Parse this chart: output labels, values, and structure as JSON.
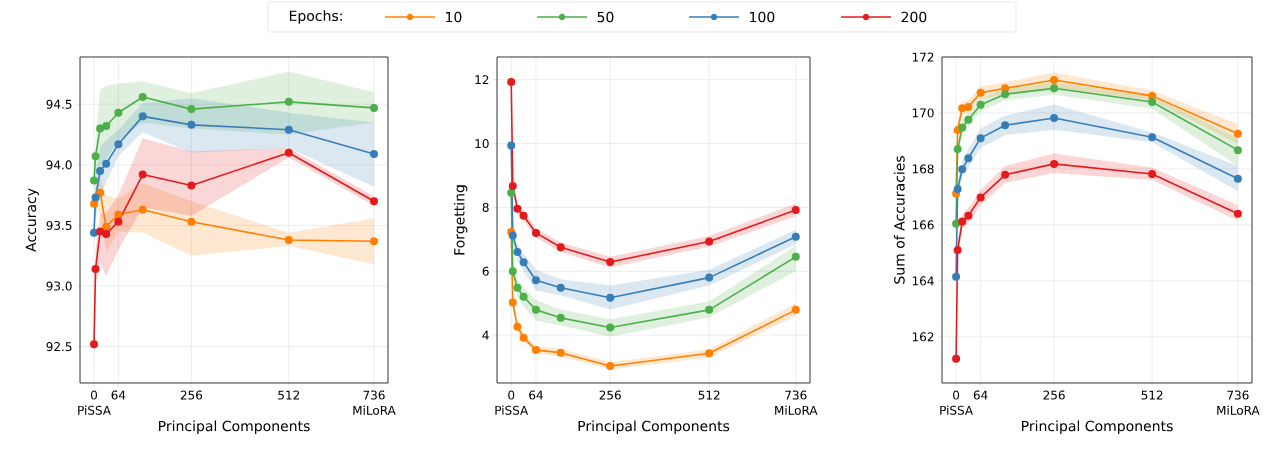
{
  "chart_data": [
    {
      "type": "line",
      "xlabel": "Principal Components",
      "ylabel": "Accuracy",
      "x": [
        0,
        4,
        16,
        32,
        64,
        128,
        256,
        512,
        736
      ],
      "xlim": [
        -36.8,
        772.8
      ],
      "xticks": [
        0,
        64,
        256,
        512,
        736
      ],
      "ylim": [
        92.2,
        94.89
      ],
      "yticks": [
        92.5,
        {
          "value": 93,
          "label": "93.0"
        },
        93.5,
        {
          "value": 94,
          "label": "94.0"
        },
        94.5
      ],
      "grid": true,
      "marker": "circle",
      "annotations": [
        "PiSSA",
        "MiLoRA"
      ],
      "series": [
        {
          "color": "#ff7f00",
          "values": [
            93.68,
            null,
            93.77,
            93.49,
            93.59,
            93.63,
            93.53,
            93.38,
            93.37
          ],
          "lower": [
            93.6,
            93.65,
            93.6,
            93.29,
            93.45,
            93.44,
            93.25,
            93.33,
            93.18
          ],
          "upper": [
            93.75,
            93.8,
            93.9,
            93.75,
            93.72,
            93.85,
            93.7,
            93.44,
            93.56
          ]
        },
        {
          "color": "#4daf4a",
          "values": [
            93.87,
            94.07,
            94.3,
            94.32,
            94.43,
            94.56,
            94.46,
            94.52,
            94.47
          ],
          "lower": [
            93.7,
            93.9,
            94.0,
            94.05,
            94.2,
            94.35,
            94.3,
            94.25,
            94.35
          ],
          "upper": [
            94.0,
            94.2,
            94.62,
            94.65,
            94.67,
            94.69,
            94.59,
            94.77,
            94.6
          ]
        },
        {
          "color": "#377eb8",
          "values": [
            93.44,
            93.73,
            93.95,
            94.01,
            94.17,
            94.4,
            94.33,
            94.29,
            94.09
          ],
          "lower": [
            93.3,
            93.55,
            93.75,
            93.85,
            94.07,
            94.27,
            94.1,
            94.14,
            93.82
          ],
          "upper": [
            93.6,
            93.9,
            94.15,
            94.2,
            94.29,
            94.51,
            94.55,
            94.43,
            94.35
          ]
        },
        {
          "color": "#e41a1c",
          "values": [
            92.52,
            93.14,
            93.45,
            93.43,
            93.53,
            93.92,
            93.83,
            94.1,
            93.7
          ],
          "lower": [
            92.32,
            93.0,
            93.19,
            93.08,
            93.3,
            93.65,
            93.58,
            94.06,
            93.66
          ],
          "upper": [
            92.7,
            93.3,
            93.6,
            93.6,
            93.75,
            94.22,
            94.11,
            94.14,
            93.74
          ]
        }
      ]
    },
    {
      "type": "line",
      "xlabel": "Principal Components",
      "ylabel": "Forgetting",
      "x": [
        0,
        4,
        16,
        32,
        64,
        128,
        256,
        512,
        736
      ],
      "xlim": [
        -36.8,
        772.8
      ],
      "xticks": [
        0,
        64,
        256,
        512,
        736
      ],
      "ylim": [
        2.5,
        12.71
      ],
      "yticks": [
        4,
        6,
        8,
        10,
        12
      ],
      "grid": true,
      "marker": "circle",
      "legend": "top",
      "legend_title": "Epochs:",
      "annotations": [
        "PiSSA",
        "MiLoRA"
      ],
      "series": [
        {
          "name": "10",
          "color": "#ff7f00",
          "values": [
            7.23,
            5.02,
            4.26,
            3.92,
            3.53,
            3.45,
            3.03,
            3.43,
            4.79
          ],
          "lower": [
            7.05,
            4.85,
            4.12,
            3.8,
            3.42,
            3.33,
            2.92,
            3.3,
            4.6
          ],
          "upper": [
            7.4,
            5.2,
            4.4,
            4.05,
            3.65,
            3.57,
            3.15,
            3.56,
            5.0
          ]
        },
        {
          "name": "50",
          "color": "#4daf4a",
          "values": [
            8.46,
            6.0,
            5.48,
            5.2,
            4.79,
            4.54,
            4.24,
            4.79,
            6.45
          ],
          "lower": [
            8.3,
            5.75,
            5.2,
            4.9,
            4.45,
            4.3,
            3.95,
            4.55,
            6.0
          ],
          "upper": [
            8.6,
            6.25,
            5.75,
            5.5,
            5.1,
            4.8,
            4.5,
            5.05,
            6.8
          ]
        },
        {
          "name": "100",
          "color": "#377eb8",
          "values": [
            9.94,
            7.12,
            6.6,
            6.28,
            5.72,
            5.48,
            5.17,
            5.8,
            7.08
          ],
          "lower": [
            9.8,
            6.9,
            6.35,
            6.0,
            5.4,
            5.25,
            4.8,
            5.55,
            6.85
          ],
          "upper": [
            10.1,
            7.35,
            6.85,
            6.55,
            6.05,
            5.75,
            5.55,
            6.05,
            7.3
          ]
        },
        {
          "name": "200",
          "color": "#e41a1c",
          "values": [
            11.93,
            8.67,
            7.96,
            7.74,
            7.2,
            6.75,
            6.29,
            6.93,
            7.92
          ],
          "lower": [
            11.65,
            8.5,
            7.8,
            7.6,
            7.05,
            6.6,
            6.12,
            6.77,
            7.72
          ],
          "upper": [
            12.25,
            8.85,
            8.12,
            7.9,
            7.35,
            6.9,
            6.45,
            7.1,
            8.12
          ]
        }
      ]
    },
    {
      "type": "line",
      "xlabel": "Principal Components",
      "ylabel": "Sum of Accuracies",
      "x": [
        0,
        4,
        16,
        32,
        64,
        128,
        256,
        512,
        736
      ],
      "xlim": [
        -36.8,
        772.8
      ],
      "xticks": [
        0,
        64,
        256,
        512,
        736
      ],
      "ylim": [
        160.35,
        172
      ],
      "yticks": [
        162,
        164,
        166,
        168,
        170,
        172
      ],
      "grid": true,
      "marker": "circle",
      "annotations": [
        "PiSSA",
        "MiLoRA"
      ],
      "series": [
        {
          "color": "#ff7f00",
          "values": [
            167.12,
            169.39,
            170.17,
            170.21,
            170.72,
            170.88,
            171.18,
            170.61,
            169.26
          ],
          "lower": [
            166.9,
            169.1,
            169.95,
            170.0,
            170.5,
            170.65,
            170.9,
            170.45,
            168.9
          ],
          "upper": [
            167.35,
            169.65,
            170.4,
            170.45,
            170.95,
            171.1,
            171.45,
            170.8,
            169.6
          ]
        },
        {
          "color": "#4daf4a",
          "values": [
            166.04,
            168.71,
            169.48,
            169.76,
            170.29,
            170.67,
            170.88,
            170.39,
            168.67
          ],
          "lower": [
            165.8,
            168.45,
            169.2,
            169.5,
            170.05,
            170.45,
            170.65,
            170.15,
            168.1
          ],
          "upper": [
            166.3,
            168.95,
            169.75,
            170.0,
            170.5,
            170.9,
            171.1,
            170.6,
            169.1
          ]
        },
        {
          "color": "#377eb8",
          "values": [
            164.15,
            167.28,
            167.99,
            168.38,
            169.1,
            169.56,
            169.82,
            169.13,
            167.65
          ],
          "lower": [
            163.8,
            167.0,
            167.7,
            168.05,
            168.75,
            169.2,
            169.4,
            168.95,
            167.2
          ],
          "upper": [
            164.5,
            167.55,
            168.3,
            168.7,
            169.45,
            169.9,
            170.3,
            169.3,
            168.1
          ]
        },
        {
          "color": "#e41a1c",
          "values": [
            161.22,
            165.1,
            166.12,
            166.33,
            166.98,
            167.79,
            168.18,
            167.82,
            166.4
          ],
          "lower": [
            160.9,
            164.8,
            165.85,
            166.05,
            166.7,
            167.5,
            167.85,
            167.6,
            166.15
          ],
          "upper": [
            161.6,
            165.4,
            166.4,
            166.6,
            167.25,
            168.1,
            168.55,
            168.05,
            166.7
          ]
        }
      ]
    }
  ]
}
